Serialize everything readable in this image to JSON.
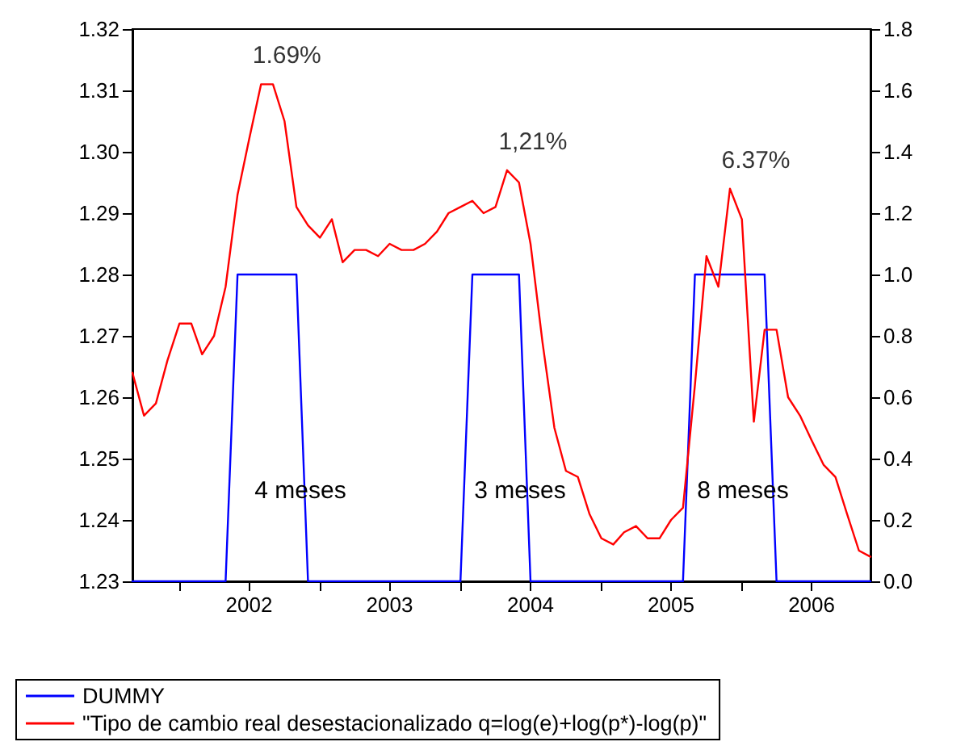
{
  "chart_data": {
    "type": "line",
    "x": [
      "2001-09",
      "2001-10",
      "2001-11",
      "2001-12",
      "2002-01",
      "2002-02",
      "2002-03",
      "2002-04",
      "2002-05",
      "2002-06",
      "2002-07",
      "2002-08",
      "2002-09",
      "2002-10",
      "2002-11",
      "2002-12",
      "2003-01",
      "2003-02",
      "2003-03",
      "2003-04",
      "2003-05",
      "2003-06",
      "2003-07",
      "2003-08",
      "2003-09",
      "2003-10",
      "2003-11",
      "2003-12",
      "2004-01",
      "2004-02",
      "2004-03",
      "2004-04",
      "2004-05",
      "2004-06",
      "2004-07",
      "2004-08",
      "2004-09",
      "2004-10",
      "2004-11",
      "2004-12",
      "2005-01",
      "2005-02",
      "2005-03",
      "2005-04",
      "2005-05",
      "2005-06",
      "2005-07",
      "2005-08",
      "2005-09",
      "2005-10",
      "2005-11",
      "2005-12",
      "2006-01",
      "2006-02",
      "2006-03",
      "2006-04",
      "2006-05",
      "2006-06",
      "2006-07",
      "2006-08",
      "2006-09",
      "2006-10",
      "2006-11",
      "2006-12"
    ],
    "series": [
      {
        "name": "DUMMY",
        "color": "#0000ff",
        "axis": "y2",
        "values": [
          0,
          0,
          0,
          0,
          0,
          0,
          0,
          0,
          0,
          1,
          1,
          1,
          1,
          1,
          1,
          0,
          0,
          0,
          0,
          0,
          0,
          0,
          0,
          0,
          0,
          0,
          0,
          0,
          0,
          1,
          1,
          1,
          1,
          1,
          0,
          0,
          0,
          0,
          0,
          0,
          0,
          0,
          0,
          0,
          0,
          0,
          0,
          0,
          1,
          1,
          1,
          1,
          1,
          1,
          1,
          0,
          0,
          0,
          0,
          0,
          0,
          0,
          0,
          0
        ]
      },
      {
        "name": "\"Tipo de cambio real desestacionalizado q=log(e)+log(p*)-log(p)\"",
        "color": "#ff0000",
        "values": [
          1.264,
          1.257,
          1.259,
          1.266,
          1.272,
          1.272,
          1.267,
          1.27,
          1.278,
          1.293,
          1.302,
          1.311,
          1.311,
          1.305,
          1.291,
          1.288,
          1.286,
          1.289,
          1.282,
          1.284,
          1.284,
          1.283,
          1.285,
          1.284,
          1.284,
          1.285,
          1.287,
          1.29,
          1.291,
          1.292,
          1.29,
          1.291,
          1.297,
          1.295,
          1.285,
          1.269,
          1.255,
          1.248,
          1.247,
          1.241,
          1.237,
          1.236,
          1.238,
          1.239,
          1.237,
          1.237,
          1.24,
          1.242,
          1.262,
          1.283,
          1.278,
          1.294,
          1.289,
          1.256,
          1.271,
          1.271,
          1.26,
          1.257,
          1.253,
          1.249,
          1.247,
          1.241,
          1.235,
          1.234
        ]
      }
    ],
    "xlim": [
      "2001-09",
      "2006-12"
    ],
    "xticks": [
      {
        "value": "2002-01",
        "label": null
      },
      {
        "value": "2002-07",
        "label": "2002"
      },
      {
        "value": "2003-01",
        "label": null
      },
      {
        "value": "2003-07",
        "label": "2003"
      },
      {
        "value": "2004-01",
        "label": null
      },
      {
        "value": "2004-07",
        "label": "2004"
      },
      {
        "value": "2005-01",
        "label": null
      },
      {
        "value": "2005-07",
        "label": "2005"
      },
      {
        "value": "2006-01",
        "label": null
      },
      {
        "value": "2006-07",
        "label": "2006"
      }
    ],
    "ylim": [
      1.23,
      1.32
    ],
    "yticks": [
      1.23,
      1.24,
      1.25,
      1.26,
      1.27,
      1.28,
      1.29,
      {
        "value": 1.3,
        "label": "1.30"
      },
      1.31,
      1.32
    ],
    "y2lim": [
      0,
      1.8
    ],
    "y2ticks": [
      {
        "value": 0,
        "label": "0.0"
      },
      0.2,
      0.4,
      0.6,
      0.8,
      {
        "value": 1,
        "label": "1.0"
      },
      1.2,
      1.4,
      1.6,
      1.8
    ],
    "annotations": [
      {
        "text": "1.69%",
        "x": "2002-08",
        "y": 1.311
      },
      {
        "text": "1,21%",
        "x": "2004-05",
        "y": 1.297
      },
      {
        "text": "6.37%",
        "x": "2005-12",
        "y": 1.294
      },
      "4 meses",
      "3 meses",
      "8 meses"
    ],
    "grid": false,
    "legend": "bottom",
    "marker": "none",
    "line_style": "solid"
  }
}
